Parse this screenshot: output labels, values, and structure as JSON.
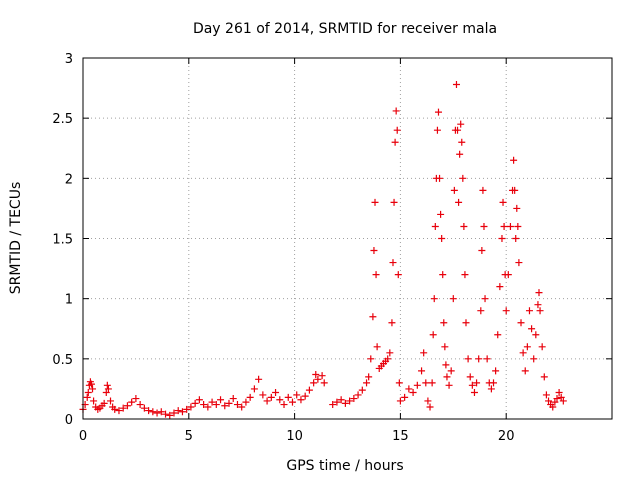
{
  "chart_data": {
    "type": "scatter",
    "title": "Day 261 of 2014, SRMTID for receiver mala",
    "xlabel": "GPS time / hours",
    "ylabel": "SRMTID / TECUs",
    "xlim": [
      0,
      25
    ],
    "ylim": [
      0,
      3
    ],
    "xticks": [
      "0",
      "5",
      "10",
      "15",
      "20"
    ],
    "yticks": [
      "0",
      "0.5",
      "1",
      "1.5",
      "2",
      "2.5",
      "3"
    ],
    "grid": true,
    "marker": "+",
    "colors": {
      "series": "#e8000b",
      "grid": "#a0a0a0",
      "axis": "#000000"
    },
    "series": [
      {
        "name": "SRMTID",
        "points": [
          [
            0.0,
            0.08
          ],
          [
            0.1,
            0.12
          ],
          [
            0.2,
            0.18
          ],
          [
            0.25,
            0.22
          ],
          [
            0.3,
            0.28
          ],
          [
            0.35,
            0.31
          ],
          [
            0.4,
            0.29
          ],
          [
            0.45,
            0.25
          ],
          [
            0.5,
            0.15
          ],
          [
            0.6,
            0.1
          ],
          [
            0.7,
            0.08
          ],
          [
            0.8,
            0.09
          ],
          [
            0.9,
            0.11
          ],
          [
            1.0,
            0.13
          ],
          [
            1.1,
            0.22
          ],
          [
            1.15,
            0.28
          ],
          [
            1.2,
            0.25
          ],
          [
            1.3,
            0.15
          ],
          [
            1.4,
            0.1
          ],
          [
            1.5,
            0.08
          ],
          [
            1.7,
            0.07
          ],
          [
            1.9,
            0.09
          ],
          [
            2.1,
            0.11
          ],
          [
            2.3,
            0.14
          ],
          [
            2.5,
            0.17
          ],
          [
            2.7,
            0.12
          ],
          [
            2.9,
            0.09
          ],
          [
            3.1,
            0.07
          ],
          [
            3.3,
            0.06
          ],
          [
            3.5,
            0.05
          ],
          [
            3.7,
            0.06
          ],
          [
            3.9,
            0.04
          ],
          [
            4.1,
            0.03
          ],
          [
            4.3,
            0.05
          ],
          [
            4.5,
            0.07
          ],
          [
            4.7,
            0.06
          ],
          [
            4.9,
            0.08
          ],
          [
            5.1,
            0.1
          ],
          [
            5.3,
            0.13
          ],
          [
            5.5,
            0.16
          ],
          [
            5.7,
            0.12
          ],
          [
            5.9,
            0.1
          ],
          [
            6.1,
            0.14
          ],
          [
            6.3,
            0.12
          ],
          [
            6.5,
            0.16
          ],
          [
            6.7,
            0.11
          ],
          [
            6.9,
            0.13
          ],
          [
            7.1,
            0.17
          ],
          [
            7.3,
            0.12
          ],
          [
            7.5,
            0.1
          ],
          [
            7.7,
            0.14
          ],
          [
            7.9,
            0.18
          ],
          [
            8.1,
            0.25
          ],
          [
            8.3,
            0.33
          ],
          [
            8.5,
            0.2
          ],
          [
            8.7,
            0.15
          ],
          [
            8.9,
            0.18
          ],
          [
            9.1,
            0.22
          ],
          [
            9.3,
            0.16
          ],
          [
            9.5,
            0.12
          ],
          [
            9.7,
            0.18
          ],
          [
            9.9,
            0.14
          ],
          [
            10.1,
            0.2
          ],
          [
            10.3,
            0.16
          ],
          [
            10.5,
            0.19
          ],
          [
            10.7,
            0.24
          ],
          [
            10.9,
            0.3
          ],
          [
            11.0,
            0.37
          ],
          [
            11.1,
            0.33
          ],
          [
            11.3,
            0.36
          ],
          [
            11.4,
            0.3
          ],
          [
            11.8,
            0.12
          ],
          [
            12.0,
            0.14
          ],
          [
            12.2,
            0.16
          ],
          [
            12.4,
            0.13
          ],
          [
            12.6,
            0.15
          ],
          [
            12.8,
            0.17
          ],
          [
            13.0,
            0.2
          ],
          [
            13.2,
            0.24
          ],
          [
            13.4,
            0.3
          ],
          [
            13.5,
            0.35
          ],
          [
            13.6,
            0.5
          ],
          [
            13.7,
            0.85
          ],
          [
            13.75,
            1.4
          ],
          [
            13.8,
            1.8
          ],
          [
            13.85,
            1.2
          ],
          [
            13.9,
            0.6
          ],
          [
            14.0,
            0.42
          ],
          [
            14.1,
            0.44
          ],
          [
            14.2,
            0.46
          ],
          [
            14.3,
            0.48
          ],
          [
            14.4,
            0.5
          ],
          [
            14.5,
            0.55
          ],
          [
            14.6,
            0.8
          ],
          [
            14.65,
            1.3
          ],
          [
            14.7,
            1.8
          ],
          [
            14.75,
            2.3
          ],
          [
            14.8,
            2.56
          ],
          [
            14.85,
            2.4
          ],
          [
            14.9,
            1.2
          ],
          [
            14.95,
            0.3
          ],
          [
            15.0,
            0.15
          ],
          [
            15.2,
            0.18
          ],
          [
            15.4,
            0.25
          ],
          [
            15.6,
            0.22
          ],
          [
            15.8,
            0.28
          ],
          [
            16.0,
            0.4
          ],
          [
            16.1,
            0.55
          ],
          [
            16.2,
            0.3
          ],
          [
            16.3,
            0.15
          ],
          [
            16.4,
            0.1
          ],
          [
            16.5,
            0.3
          ],
          [
            16.55,
            0.7
          ],
          [
            16.6,
            1.0
          ],
          [
            16.65,
            1.6
          ],
          [
            16.7,
            2.0
          ],
          [
            16.75,
            2.4
          ],
          [
            16.8,
            2.55
          ],
          [
            16.85,
            2.0
          ],
          [
            16.9,
            1.7
          ],
          [
            16.95,
            1.5
          ],
          [
            17.0,
            1.2
          ],
          [
            17.05,
            0.8
          ],
          [
            17.1,
            0.6
          ],
          [
            17.15,
            0.45
          ],
          [
            17.2,
            0.35
          ],
          [
            17.3,
            0.28
          ],
          [
            17.4,
            0.4
          ],
          [
            17.5,
            1.0
          ],
          [
            17.55,
            1.9
          ],
          [
            17.6,
            2.4
          ],
          [
            17.65,
            2.78
          ],
          [
            17.7,
            2.4
          ],
          [
            17.75,
            1.8
          ],
          [
            17.8,
            2.2
          ],
          [
            17.85,
            2.45
          ],
          [
            17.9,
            2.3
          ],
          [
            17.95,
            2.0
          ],
          [
            18.0,
            1.6
          ],
          [
            18.05,
            1.2
          ],
          [
            18.1,
            0.8
          ],
          [
            18.2,
            0.5
          ],
          [
            18.3,
            0.35
          ],
          [
            18.4,
            0.28
          ],
          [
            18.5,
            0.22
          ],
          [
            18.6,
            0.3
          ],
          [
            18.7,
            0.5
          ],
          [
            18.8,
            0.9
          ],
          [
            18.85,
            1.4
          ],
          [
            18.9,
            1.9
          ],
          [
            18.95,
            1.6
          ],
          [
            19.0,
            1.0
          ],
          [
            19.1,
            0.5
          ],
          [
            19.2,
            0.3
          ],
          [
            19.3,
            0.25
          ],
          [
            19.4,
            0.3
          ],
          [
            19.5,
            0.4
          ],
          [
            19.6,
            0.7
          ],
          [
            19.7,
            1.1
          ],
          [
            19.8,
            1.5
          ],
          [
            19.85,
            1.8
          ],
          [
            19.9,
            1.6
          ],
          [
            19.95,
            1.2
          ],
          [
            20.0,
            0.9
          ],
          [
            20.1,
            1.2
          ],
          [
            20.2,
            1.6
          ],
          [
            20.3,
            1.9
          ],
          [
            20.35,
            2.15
          ],
          [
            20.4,
            1.9
          ],
          [
            20.45,
            1.5
          ],
          [
            20.5,
            1.75
          ],
          [
            20.55,
            1.6
          ],
          [
            20.6,
            1.3
          ],
          [
            20.7,
            0.8
          ],
          [
            20.8,
            0.55
          ],
          [
            20.9,
            0.4
          ],
          [
            21.0,
            0.6
          ],
          [
            21.1,
            0.9
          ],
          [
            21.2,
            0.75
          ],
          [
            21.3,
            0.5
          ],
          [
            21.4,
            0.7
          ],
          [
            21.5,
            0.95
          ],
          [
            21.55,
            1.05
          ],
          [
            21.6,
            0.9
          ],
          [
            21.7,
            0.6
          ],
          [
            21.8,
            0.35
          ],
          [
            21.9,
            0.2
          ],
          [
            22.0,
            0.15
          ],
          [
            22.1,
            0.12
          ],
          [
            22.2,
            0.1
          ],
          [
            22.3,
            0.14
          ],
          [
            22.4,
            0.17
          ],
          [
            22.5,
            0.22
          ],
          [
            22.6,
            0.18
          ],
          [
            22.7,
            0.15
          ]
        ]
      }
    ]
  }
}
